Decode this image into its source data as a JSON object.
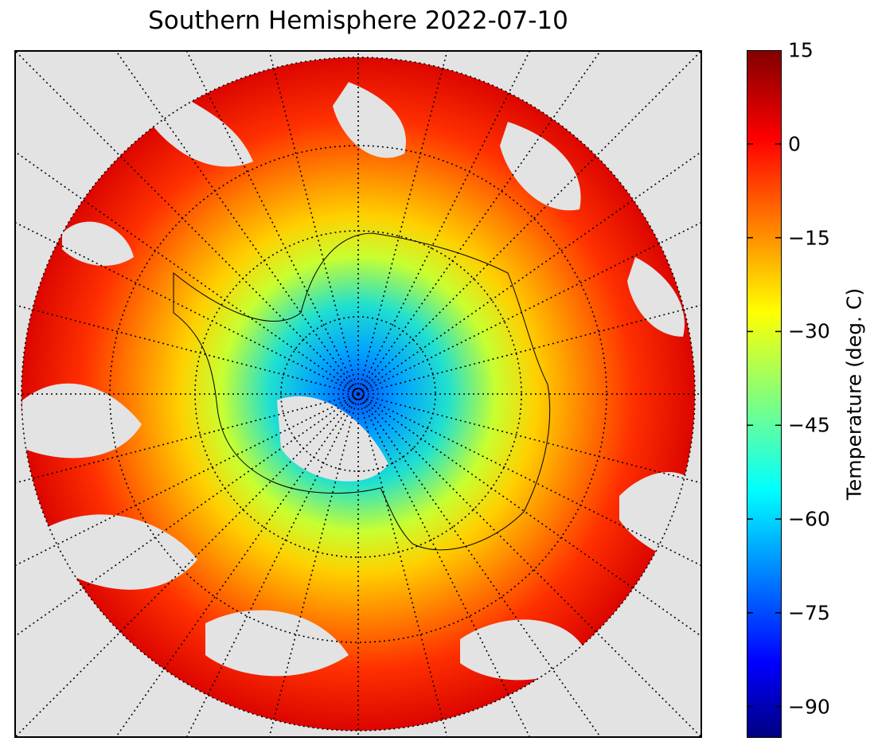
{
  "map": {
    "title": "Southern Hemisphere 2022-07-10",
    "projection": "south polar stereographic",
    "background_color": "#e3e3e3",
    "graticule": {
      "meridians_every_deg": 15,
      "parallels_every_deg": 10,
      "style": "dotted"
    },
    "colormap": "jet"
  },
  "colorbar": {
    "label": "Temperature (deg. C)",
    "range": [
      -95,
      15
    ],
    "ticks": [
      {
        "value": 15,
        "label": "15"
      },
      {
        "value": 0,
        "label": "0"
      },
      {
        "value": -15,
        "label": "−15"
      },
      {
        "value": -30,
        "label": "−30"
      },
      {
        "value": -45,
        "label": "−45"
      },
      {
        "value": -60,
        "label": "−60"
      },
      {
        "value": -75,
        "label": "−75"
      },
      {
        "value": -90,
        "label": "−90"
      }
    ]
  }
}
